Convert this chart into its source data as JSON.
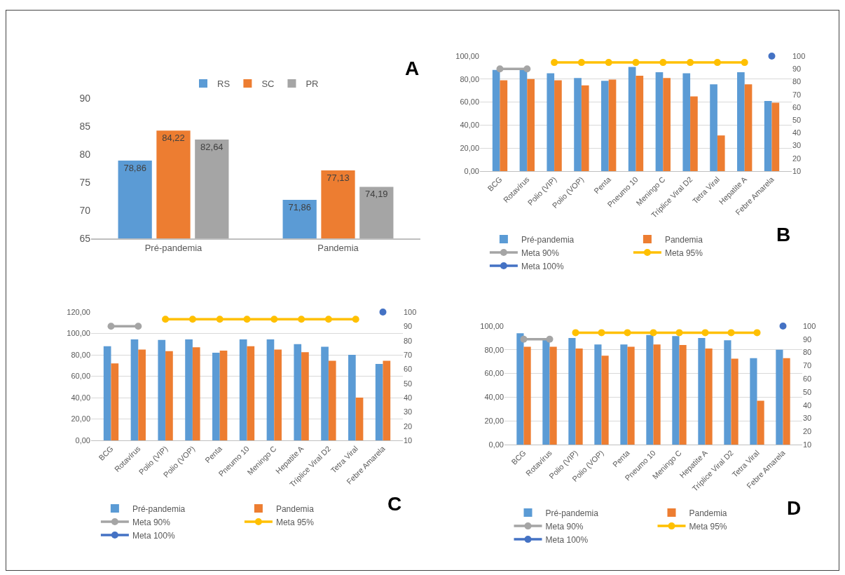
{
  "chart_data": [
    {
      "type": "bar",
      "categories": [
        "Pré-pandemia",
        "Pandemia"
      ],
      "series": [
        {
          "name": "RS",
          "color": "#5b9bd5",
          "values": [
            78.86,
            71.86
          ],
          "value_labels": [
            "78,86",
            "71,86"
          ]
        },
        {
          "name": "SC",
          "color": "#ed7d31",
          "values": [
            84.22,
            77.13
          ],
          "value_labels": [
            "84,22",
            "77,13"
          ]
        },
        {
          "name": "PR",
          "color": "#a5a5a5",
          "values": [
            82.64,
            74.19
          ],
          "value_labels": [
            "82,64",
            "74,19"
          ]
        }
      ],
      "ylim": [
        65,
        90
      ],
      "yticks": [
        65,
        70,
        75,
        80,
        85,
        90
      ],
      "grid": false,
      "legend": "top",
      "annotations": [
        "A"
      ]
    },
    {
      "type": "bar",
      "categories": [
        "BCG",
        "Rotavírus",
        "Polio (VIP)",
        "Polio (VOP)",
        "Penta",
        "Pneumo 10",
        "Meningo C",
        "Tríplice Viral D2",
        "Tetra Viral",
        "Hepatite A",
        "Febre Amarela"
      ],
      "series": [
        {
          "name": "Pré-pandemia",
          "color": "#5b9bd5",
          "values": [
            88,
            88,
            85,
            81,
            78.5,
            90.5,
            86,
            85,
            75.5,
            86,
            61
          ]
        },
        {
          "name": "Pandemia",
          "color": "#ed7d31",
          "values": [
            79,
            80,
            79,
            74.5,
            79.5,
            83,
            81,
            65,
            31,
            75.5,
            59.5
          ]
        },
        {
          "name": "Meta 90%",
          "type": "line",
          "axis": "y2",
          "color": "#a5a5a5",
          "values": [
            90,
            90,
            null,
            null,
            null,
            null,
            null,
            null,
            null,
            null,
            null
          ]
        },
        {
          "name": "Meta 95%",
          "type": "line",
          "axis": "y2",
          "color": "#ffc000",
          "values": [
            null,
            null,
            95,
            95,
            95,
            95,
            95,
            95,
            95,
            95,
            null
          ]
        },
        {
          "name": "Meta 100%",
          "type": "line",
          "axis": "y2",
          "color": "#4472c4",
          "values": [
            null,
            null,
            null,
            null,
            null,
            null,
            null,
            null,
            null,
            null,
            100
          ]
        }
      ],
      "ylim": [
        0,
        100
      ],
      "yticks": [
        {
          "value": 0,
          "label": "0,00"
        },
        {
          "value": 20,
          "label": "20,00"
        },
        {
          "value": 40,
          "label": "40,00"
        },
        {
          "value": 60,
          "label": "60,00"
        },
        {
          "value": 80,
          "label": "80,00"
        },
        {
          "value": 100,
          "label": "100,00"
        }
      ],
      "y2lim": [
        10,
        100
      ],
      "y2ticks": [
        10,
        20,
        30,
        40,
        50,
        60,
        70,
        80,
        90,
        100
      ],
      "grid": "y",
      "legend": "bottom",
      "marker": "circle",
      "annotations": [
        "B"
      ]
    },
    {
      "type": "bar",
      "categories": [
        "BCG",
        "Rotavírus",
        "Polio (VIP)",
        "Polio (VOP)",
        "Penta",
        "Pneumo 10",
        "Meningo C",
        "Hepatite A",
        "Tríplice Viral D2",
        "Tetra Viral",
        "Febre Amarela"
      ],
      "series": [
        {
          "name": "Pré-pandemia",
          "color": "#5b9bd5",
          "values": [
            88,
            94.5,
            94,
            94.5,
            82,
            94.5,
            94.5,
            90,
            87.5,
            80,
            71.5
          ]
        },
        {
          "name": "Pandemia",
          "color": "#ed7d31",
          "values": [
            72,
            85,
            83.5,
            87,
            84,
            88,
            85,
            82.5,
            74.5,
            40,
            74.5
          ]
        },
        {
          "name": "Meta 90%",
          "type": "line",
          "axis": "y2",
          "color": "#a5a5a5",
          "values": [
            90,
            90,
            null,
            null,
            null,
            null,
            null,
            null,
            null,
            null,
            null
          ]
        },
        {
          "name": "Meta 95%",
          "type": "line",
          "axis": "y2",
          "color": "#ffc000",
          "values": [
            null,
            null,
            95,
            95,
            95,
            95,
            95,
            95,
            95,
            95,
            null
          ]
        },
        {
          "name": "Meta 100%",
          "type": "line",
          "axis": "y2",
          "color": "#4472c4",
          "values": [
            null,
            null,
            null,
            null,
            null,
            null,
            null,
            null,
            null,
            null,
            100
          ]
        }
      ],
      "ylim": [
        0,
        120
      ],
      "yticks": [
        {
          "value": 0,
          "label": "0,00"
        },
        {
          "value": 20,
          "label": "20,00"
        },
        {
          "value": 40,
          "label": "40,00"
        },
        {
          "value": 60,
          "label": "60,00"
        },
        {
          "value": 80,
          "label": "80,00"
        },
        {
          "value": 100,
          "label": "100,00"
        },
        {
          "value": 120,
          "label": "120,00"
        }
      ],
      "y2lim": [
        10,
        100
      ],
      "y2ticks": [
        10,
        20,
        30,
        40,
        50,
        60,
        70,
        80,
        90,
        100
      ],
      "grid": "y",
      "legend": "bottom",
      "marker": "circle",
      "annotations": [
        "C"
      ]
    },
    {
      "type": "bar",
      "categories": [
        "BCG",
        "Rotavírus",
        "Polio (VIP)",
        "Polio (VOP)",
        "Penta",
        "Pneumo 10",
        "Meningo C",
        "Hepatite A",
        "Tríplice Viral D2",
        "Tetra Viral",
        "Febre Amarela"
      ],
      "series": [
        {
          "name": "Pré-pandemia",
          "color": "#5b9bd5",
          "values": [
            94,
            90,
            90,
            84.5,
            84.5,
            92.5,
            91.5,
            90,
            88,
            73,
            80
          ]
        },
        {
          "name": "Pandemia",
          "color": "#ed7d31",
          "values": [
            82.5,
            82.5,
            81,
            75,
            82.5,
            84.5,
            84,
            81,
            72.5,
            37,
            73
          ]
        },
        {
          "name": "Meta 90%",
          "type": "line",
          "axis": "y2",
          "color": "#a5a5a5",
          "values": [
            90,
            90,
            null,
            null,
            null,
            null,
            null,
            null,
            null,
            null,
            null
          ]
        },
        {
          "name": "Meta 95%",
          "type": "line",
          "axis": "y2",
          "color": "#ffc000",
          "values": [
            null,
            null,
            95,
            95,
            95,
            95,
            95,
            95,
            95,
            95,
            null
          ]
        },
        {
          "name": "Meta 100%",
          "type": "line",
          "axis": "y2",
          "color": "#4472c4",
          "values": [
            null,
            null,
            null,
            null,
            null,
            null,
            null,
            null,
            null,
            null,
            100
          ]
        }
      ],
      "ylim": [
        0,
        100
      ],
      "yticks": [
        {
          "value": 0,
          "label": "0,00"
        },
        {
          "value": 20,
          "label": "20,00"
        },
        {
          "value": 40,
          "label": "40,00"
        },
        {
          "value": 60,
          "label": "60,00"
        },
        {
          "value": 80,
          "label": "80,00"
        },
        {
          "value": 100,
          "label": "100,00"
        }
      ],
      "y2lim": [
        10,
        100
      ],
      "y2ticks": [
        10,
        20,
        30,
        40,
        50,
        60,
        70,
        80,
        90,
        100
      ],
      "grid": "y",
      "legend": "bottom",
      "marker": "circle",
      "annotations": [
        "D"
      ]
    }
  ]
}
